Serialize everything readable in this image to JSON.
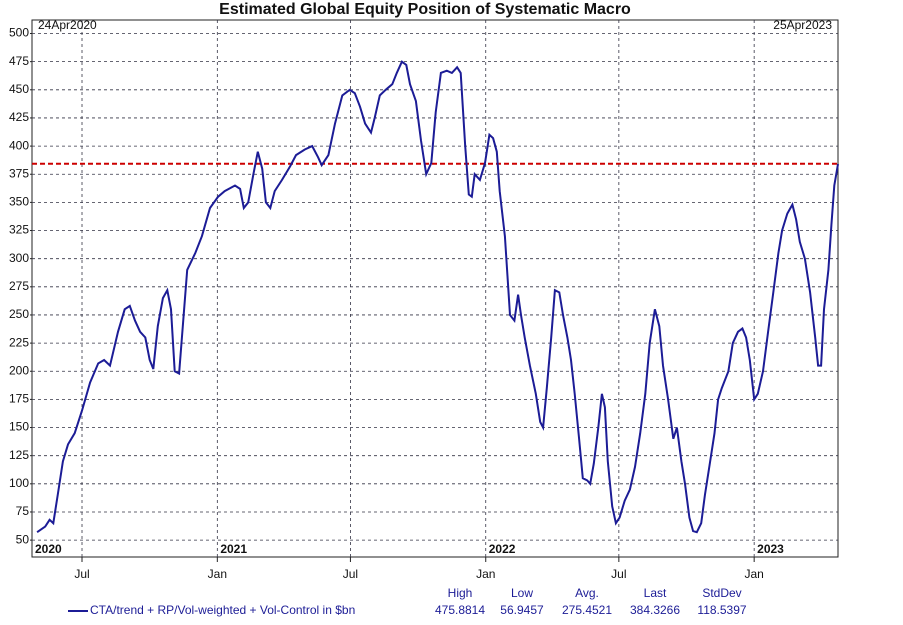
{
  "chart_data": {
    "type": "line",
    "title": "Estimated Global Equity Position of Systematic Macro",
    "corner_labels": [
      "24Apr2020",
      "25Apr2023"
    ],
    "x": [
      "2020-05-01",
      "2020-05-12",
      "2020-05-18",
      "2020-05-23",
      "2020-05-29",
      "2020-06-05",
      "2020-06-12",
      "2020-06-21",
      "2020-07-01",
      "2020-07-12",
      "2020-07-23",
      "2020-07-31",
      "2020-08-08",
      "2020-08-19",
      "2020-08-28",
      "2020-09-04",
      "2020-09-11",
      "2020-09-18",
      "2020-09-25",
      "2020-10-01",
      "2020-10-06",
      "2020-10-12",
      "2020-10-19",
      "2020-10-25",
      "2020-10-30",
      "2020-11-04",
      "2020-11-10",
      "2020-11-15",
      "2020-11-21",
      "2020-12-02",
      "2020-12-11",
      "2020-12-22",
      "2021-01-02",
      "2021-01-11",
      "2021-01-25",
      "2021-02-01",
      "2021-02-06",
      "2021-02-12",
      "2021-02-19",
      "2021-02-25",
      "2021-03-03",
      "2021-03-08",
      "2021-03-14",
      "2021-03-20",
      "2021-03-30",
      "2021-04-10",
      "2021-04-18",
      "2021-04-30",
      "2021-05-10",
      "2021-05-18",
      "2021-05-23",
      "2021-06-01",
      "2021-06-10",
      "2021-06-20",
      "2021-06-30",
      "2021-07-07",
      "2021-07-14",
      "2021-07-21",
      "2021-07-29",
      "2021-08-03",
      "2021-08-10",
      "2021-08-18",
      "2021-08-27",
      "2021-09-02",
      "2021-09-09",
      "2021-09-15",
      "2021-09-20",
      "2021-09-28",
      "2021-10-05",
      "2021-10-12",
      "2021-10-19",
      "2021-10-25",
      "2021-11-01",
      "2021-11-09",
      "2021-11-16",
      "2021-11-23",
      "2021-11-28",
      "2021-12-04",
      "2021-12-09",
      "2021-12-13",
      "2021-12-17",
      "2021-12-24",
      "2021-12-31",
      "2022-01-06",
      "2022-01-11",
      "2022-01-16",
      "2022-01-20",
      "2022-01-27",
      "2022-02-03",
      "2022-02-09",
      "2022-02-14",
      "2022-02-18",
      "2022-02-23",
      "2022-03-02",
      "2022-03-10",
      "2022-03-16",
      "2022-03-20",
      "2022-03-25",
      "2022-03-31",
      "2022-04-05",
      "2022-04-11",
      "2022-04-16",
      "2022-04-22",
      "2022-04-27",
      "2022-05-02",
      "2022-05-08",
      "2022-05-13",
      "2022-05-19",
      "2022-05-23",
      "2022-05-28",
      "2022-06-03",
      "2022-06-08",
      "2022-06-12",
      "2022-06-16",
      "2022-06-22",
      "2022-06-27",
      "2022-07-02",
      "2022-07-09",
      "2022-07-16",
      "2022-07-23",
      "2022-07-30",
      "2022-08-06",
      "2022-08-12",
      "2022-08-19",
      "2022-08-25",
      "2022-08-30",
      "2022-09-06",
      "2022-09-13",
      "2022-09-18",
      "2022-09-24",
      "2022-09-29",
      "2022-10-05",
      "2022-10-10",
      "2022-10-15",
      "2022-10-21",
      "2022-10-26",
      "2022-11-01",
      "2022-11-08",
      "2022-11-13",
      "2022-11-18",
      "2022-11-27",
      "2022-12-03",
      "2022-12-10",
      "2022-12-16",
      "2022-12-21",
      "2022-12-26",
      "2023-01-01",
      "2023-01-06",
      "2023-01-13",
      "2023-01-20",
      "2023-01-27",
      "2023-02-03",
      "2023-02-08",
      "2023-02-15",
      "2023-02-22",
      "2023-02-27",
      "2023-03-04",
      "2023-03-11",
      "2023-03-18",
      "2023-03-25",
      "2023-03-29",
      "2023-04-02",
      "2023-04-06",
      "2023-04-12",
      "2023-04-16",
      "2023-04-20",
      "2023-04-25"
    ],
    "series": [
      {
        "name": "CTA/trend + RP/Vol-weighted + Vol-Control in $bn",
        "color": "#1c1c96",
        "values": [
          57,
          62,
          68,
          65,
          90,
          120,
          135,
          145,
          165,
          190,
          207,
          210,
          205,
          235,
          255,
          258,
          245,
          235,
          230,
          210,
          202,
          240,
          265,
          272,
          255,
          200,
          198,
          240,
          290,
          305,
          320,
          345,
          355,
          360,
          365,
          362,
          345,
          350,
          375,
          395,
          380,
          350,
          345,
          360,
          370,
          382,
          392,
          397,
          400,
          390,
          383,
          392,
          420,
          445,
          450,
          447,
          435,
          420,
          412,
          425,
          445,
          450,
          455,
          465,
          475,
          472,
          455,
          440,
          405,
          375,
          385,
          430,
          465,
          467,
          465,
          470,
          465,
          400,
          357,
          355,
          375,
          370,
          385,
          410,
          407,
          395,
          360,
          320,
          250,
          245,
          268,
          250,
          230,
          205,
          180,
          155,
          150,
          185,
          230,
          272,
          270,
          250,
          230,
          210,
          180,
          140,
          105,
          103,
          100,
          118,
          150,
          180,
          168,
          120,
          80,
          65,
          70,
          85,
          95,
          115,
          145,
          180,
          225,
          255,
          240,
          205,
          175,
          140,
          150,
          120,
          100,
          70,
          58,
          57,
          65,
          90,
          115,
          145,
          175,
          185,
          200,
          225,
          235,
          238,
          230,
          210,
          175,
          180,
          200,
          235,
          270,
          305,
          325,
          340,
          348,
          335,
          315,
          300,
          270,
          230,
          205,
          205,
          255,
          290,
          330,
          365,
          384
        ]
      }
    ],
    "xlim": [
      "2020-04-24",
      "2023-04-25"
    ],
    "xticks": [
      {
        "value": "2020-07-01",
        "label": "Jul"
      },
      {
        "value": "2021-01-01",
        "label": "Jan"
      },
      {
        "value": "2021-07-01",
        "label": "Jul"
      },
      {
        "value": "2022-01-01",
        "label": "Jan"
      },
      {
        "value": "2022-07-01",
        "label": "Jul"
      },
      {
        "value": "2023-01-01",
        "label": "Jan"
      }
    ],
    "year_labels": [
      {
        "value": "2020-04-24",
        "label": "2020"
      },
      {
        "value": "2021-01-01",
        "label": "2021"
      },
      {
        "value": "2022-01-01",
        "label": "2022"
      },
      {
        "value": "2023-01-01",
        "label": "2023"
      }
    ],
    "ylim": [
      35,
      512
    ],
    "yticks": [
      50,
      75,
      100,
      125,
      150,
      175,
      200,
      225,
      250,
      275,
      300,
      325,
      350,
      375,
      400,
      425,
      450,
      475,
      500
    ],
    "grid": true,
    "reference_line_color": "#cc0000",
    "stats": {
      "labels": [
        "High",
        "Low",
        "Avg.",
        "Last",
        "StdDev"
      ],
      "values": [
        475.8814,
        56.9457,
        275.4521,
        384.3266,
        118.5397
      ]
    }
  }
}
